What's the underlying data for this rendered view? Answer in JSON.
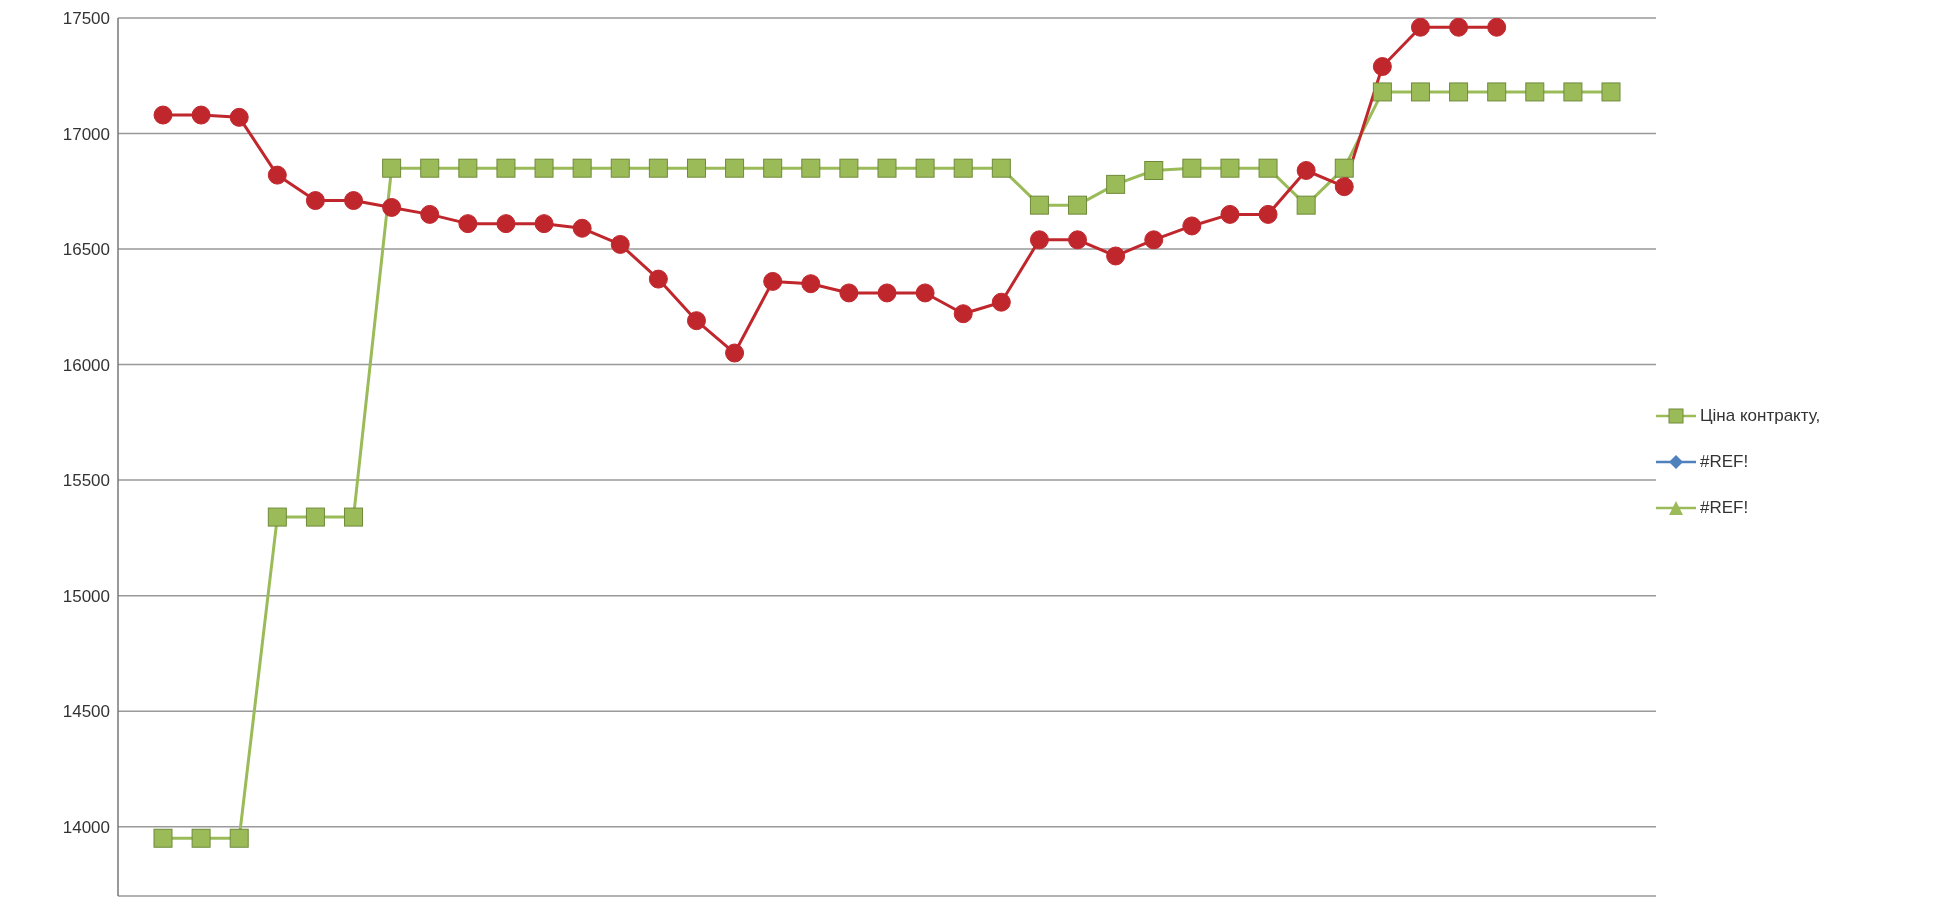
{
  "chart_data": {
    "type": "line",
    "categories": [
      null,
      null,
      null,
      null,
      null,
      null,
      null,
      null,
      null,
      null,
      null,
      null,
      null,
      null,
      null,
      null,
      null,
      null,
      null,
      null,
      null,
      null,
      null,
      null,
      null,
      null,
      null,
      null,
      null,
      null,
      null,
      null,
      null,
      null,
      null,
      null,
      null,
      null,
      null
    ],
    "ylim": [
      13700,
      17500
    ],
    "yticks": [
      14000,
      14500,
      15000,
      15500,
      16000,
      16500,
      17000,
      17500
    ],
    "grid": "y",
    "legend": "right",
    "tick_labels": "y",
    "series": [
      {
        "name": "Ціна контракту,",
        "color": "#9bbb59",
        "marker": "square",
        "values": [
          13950,
          13950,
          13950,
          15340,
          15340,
          15340,
          16850,
          16850,
          16850,
          16850,
          16850,
          16850,
          16850,
          16850,
          16850,
          16850,
          16850,
          16850,
          16850,
          16850,
          16850,
          16850,
          16850,
          16690,
          16690,
          16780,
          16840,
          16850,
          16850,
          16850,
          16690,
          16850,
          17180,
          17180,
          17180,
          17180,
          17180,
          17180,
          17180
        ]
      },
      {
        "name": "#REF!",
        "color": "#4f81bd",
        "marker": "diamond",
        "values": [
          null,
          null,
          null,
          null,
          null,
          null,
          null,
          null,
          null,
          null,
          null,
          null,
          null,
          null,
          null,
          null,
          null,
          null,
          null,
          null,
          null,
          null,
          null,
          null,
          null,
          null,
          null,
          null,
          null,
          null,
          null,
          null,
          null,
          null,
          null,
          null,
          null,
          null,
          null
        ]
      },
      {
        "color": "#c0272d",
        "marker": "circle",
        "values": [
          17080,
          17080,
          17070,
          16820,
          16710,
          16710,
          16680,
          16650,
          16610,
          16610,
          16610,
          16590,
          16520,
          16370,
          16190,
          16050,
          16360,
          16350,
          16310,
          16310,
          16310,
          16220,
          16270,
          16540,
          16540,
          16470,
          16540,
          16600,
          16650,
          16650,
          16840,
          16770,
          17290,
          17460,
          17460,
          17460,
          null,
          null,
          null
        ]
      },
      {
        "name": "#REF!",
        "color": "#9bbb59",
        "marker": "triangle",
        "values": [
          null,
          null,
          null,
          null,
          null,
          null,
          null,
          null,
          null,
          null,
          null,
          null,
          null,
          null,
          null,
          null,
          null,
          null,
          null,
          null,
          null,
          null,
          null,
          null,
          null,
          null,
          null,
          null,
          null,
          null,
          null,
          null,
          null,
          null,
          null,
          null,
          null,
          null,
          null
        ]
      }
    ]
  }
}
